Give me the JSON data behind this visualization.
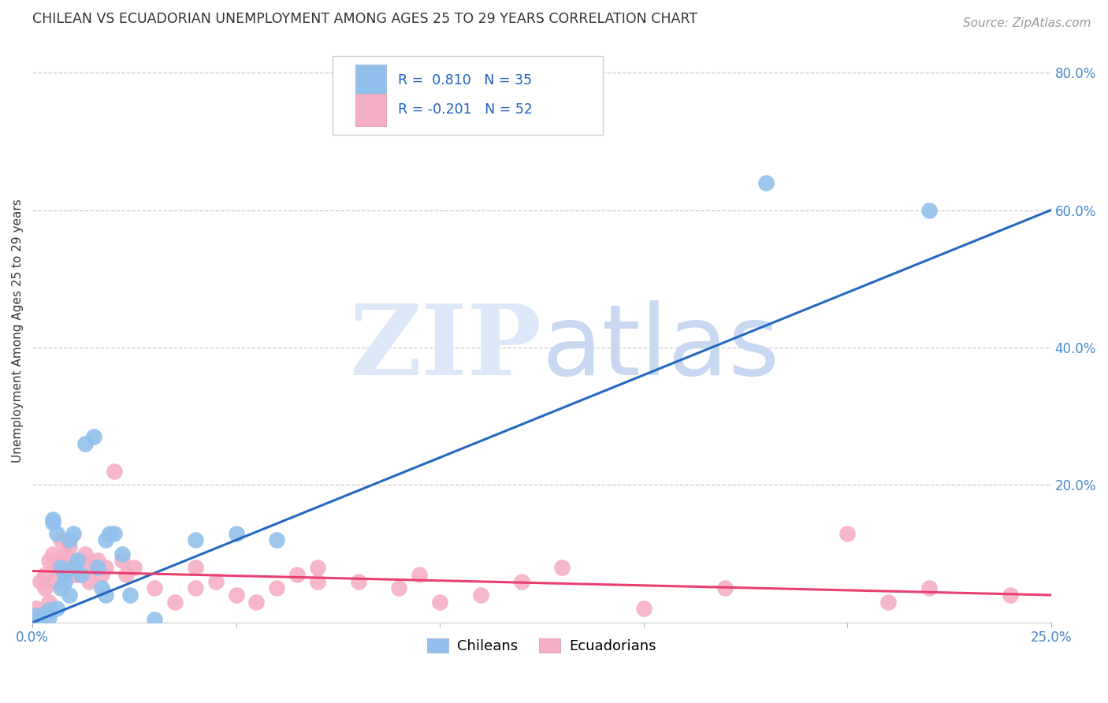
{
  "title": "CHILEAN VS ECUADORIAN UNEMPLOYMENT AMONG AGES 25 TO 29 YEARS CORRELATION CHART",
  "source": "Source: ZipAtlas.com",
  "ylabel": "Unemployment Among Ages 25 to 29 years",
  "xlim": [
    0.0,
    0.25
  ],
  "ylim": [
    0.0,
    0.85
  ],
  "xtick_positions": [
    0.0,
    0.25
  ],
  "xtick_labels": [
    "0.0%",
    "25.0%"
  ],
  "ytick_positions": [
    0.2,
    0.4,
    0.6,
    0.8
  ],
  "ytick_labels": [
    "20.0%",
    "40.0%",
    "60.0%",
    "80.0%"
  ],
  "chilean_color": "#92c0ec",
  "ecuadorian_color": "#f5afc5",
  "chilean_line_color": "#2468c0",
  "ecuadorian_line_color": "#e84070",
  "R_chilean": 0.81,
  "N_chilean": 35,
  "R_ecuadorian": -0.201,
  "N_ecuadorian": 52,
  "chilean_line_x": [
    0.0,
    0.25
  ],
  "chilean_line_y": [
    0.0,
    0.6
  ],
  "ecuadorian_line_x": [
    0.0,
    0.25
  ],
  "ecuadorian_line_y": [
    0.075,
    0.04
  ],
  "chilean_points": [
    [
      0.001,
      0.01
    ],
    [
      0.002,
      0.005
    ],
    [
      0.003,
      0.012
    ],
    [
      0.004,
      0.018
    ],
    [
      0.004,
      0.008
    ],
    [
      0.005,
      0.15
    ],
    [
      0.005,
      0.145
    ],
    [
      0.006,
      0.02
    ],
    [
      0.006,
      0.13
    ],
    [
      0.007,
      0.05
    ],
    [
      0.007,
      0.08
    ],
    [
      0.008,
      0.06
    ],
    [
      0.008,
      0.07
    ],
    [
      0.009,
      0.04
    ],
    [
      0.009,
      0.12
    ],
    [
      0.01,
      0.08
    ],
    [
      0.01,
      0.13
    ],
    [
      0.011,
      0.09
    ],
    [
      0.012,
      0.07
    ],
    [
      0.013,
      0.26
    ],
    [
      0.015,
      0.27
    ],
    [
      0.016,
      0.08
    ],
    [
      0.017,
      0.05
    ],
    [
      0.018,
      0.04
    ],
    [
      0.018,
      0.12
    ],
    [
      0.019,
      0.13
    ],
    [
      0.02,
      0.13
    ],
    [
      0.022,
      0.1
    ],
    [
      0.024,
      0.04
    ],
    [
      0.03,
      0.005
    ],
    [
      0.04,
      0.12
    ],
    [
      0.05,
      0.13
    ],
    [
      0.06,
      0.12
    ],
    [
      0.18,
      0.64
    ],
    [
      0.22,
      0.6
    ]
  ],
  "ecuadorian_points": [
    [
      0.001,
      0.02
    ],
    [
      0.002,
      0.06
    ],
    [
      0.003,
      0.05
    ],
    [
      0.003,
      0.07
    ],
    [
      0.004,
      0.03
    ],
    [
      0.004,
      0.09
    ],
    [
      0.005,
      0.06
    ],
    [
      0.005,
      0.1
    ],
    [
      0.006,
      0.08
    ],
    [
      0.007,
      0.09
    ],
    [
      0.007,
      0.12
    ],
    [
      0.008,
      0.07
    ],
    [
      0.008,
      0.1
    ],
    [
      0.009,
      0.11
    ],
    [
      0.01,
      0.08
    ],
    [
      0.01,
      0.07
    ],
    [
      0.011,
      0.07
    ],
    [
      0.012,
      0.09
    ],
    [
      0.013,
      0.1
    ],
    [
      0.014,
      0.06
    ],
    [
      0.015,
      0.08
    ],
    [
      0.016,
      0.09
    ],
    [
      0.017,
      0.07
    ],
    [
      0.018,
      0.08
    ],
    [
      0.02,
      0.22
    ],
    [
      0.022,
      0.09
    ],
    [
      0.023,
      0.07
    ],
    [
      0.025,
      0.08
    ],
    [
      0.03,
      0.05
    ],
    [
      0.035,
      0.03
    ],
    [
      0.04,
      0.05
    ],
    [
      0.04,
      0.08
    ],
    [
      0.045,
      0.06
    ],
    [
      0.05,
      0.04
    ],
    [
      0.055,
      0.03
    ],
    [
      0.06,
      0.05
    ],
    [
      0.065,
      0.07
    ],
    [
      0.07,
      0.08
    ],
    [
      0.07,
      0.06
    ],
    [
      0.08,
      0.06
    ],
    [
      0.09,
      0.05
    ],
    [
      0.095,
      0.07
    ],
    [
      0.1,
      0.03
    ],
    [
      0.11,
      0.04
    ],
    [
      0.12,
      0.06
    ],
    [
      0.13,
      0.08
    ],
    [
      0.15,
      0.02
    ],
    [
      0.17,
      0.05
    ],
    [
      0.2,
      0.13
    ],
    [
      0.21,
      0.03
    ],
    [
      0.22,
      0.05
    ],
    [
      0.24,
      0.04
    ]
  ],
  "grid_color": "#cccccc",
  "grid_linestyle": "--",
  "background_color": "#ffffff",
  "watermark_zip_color": "#dce8f8",
  "watermark_atlas_color": "#c8d8f0"
}
